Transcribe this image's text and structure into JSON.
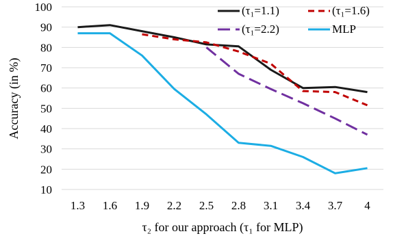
{
  "chart_data": {
    "type": "line",
    "title": "",
    "xlabel": "τ₂ for our approach (τ₁ for MLP)",
    "ylabel": "Accuracy (in %)",
    "categories": [
      "1.3",
      "1.6",
      "1.9",
      "2.2",
      "2.5",
      "2.8",
      "3.1",
      "3.4",
      "3.7",
      "4"
    ],
    "ylim": [
      10,
      100
    ],
    "yticks": [
      "10",
      "20",
      "30",
      "40",
      "50",
      "60",
      "70",
      "80",
      "90",
      "100"
    ],
    "grid": true,
    "legend_position": "top-right",
    "series": [
      {
        "name": "(τ₁=1.1)",
        "color": "#1a1a1a",
        "dash": "solid",
        "values": [
          90,
          91,
          88,
          85,
          81.5,
          80.5,
          69,
          60,
          60.5,
          58
        ]
      },
      {
        "name": "(τ₁=1.6)",
        "color": "#c00000",
        "dash": "dash",
        "values": [
          null,
          null,
          86.5,
          84,
          82.5,
          78,
          72,
          58.5,
          58,
          51.5
        ]
      },
      {
        "name": "(τ₁=2.2)",
        "color": "#7030a0",
        "dash": "longdash",
        "values": [
          null,
          null,
          null,
          null,
          80,
          67,
          59.5,
          52.5,
          45,
          37
        ]
      },
      {
        "name": "MLP",
        "color": "#1cade4",
        "dash": "solid",
        "values": [
          87,
          87,
          76,
          59.5,
          47,
          33,
          31.5,
          26,
          18,
          20.5
        ]
      }
    ]
  }
}
